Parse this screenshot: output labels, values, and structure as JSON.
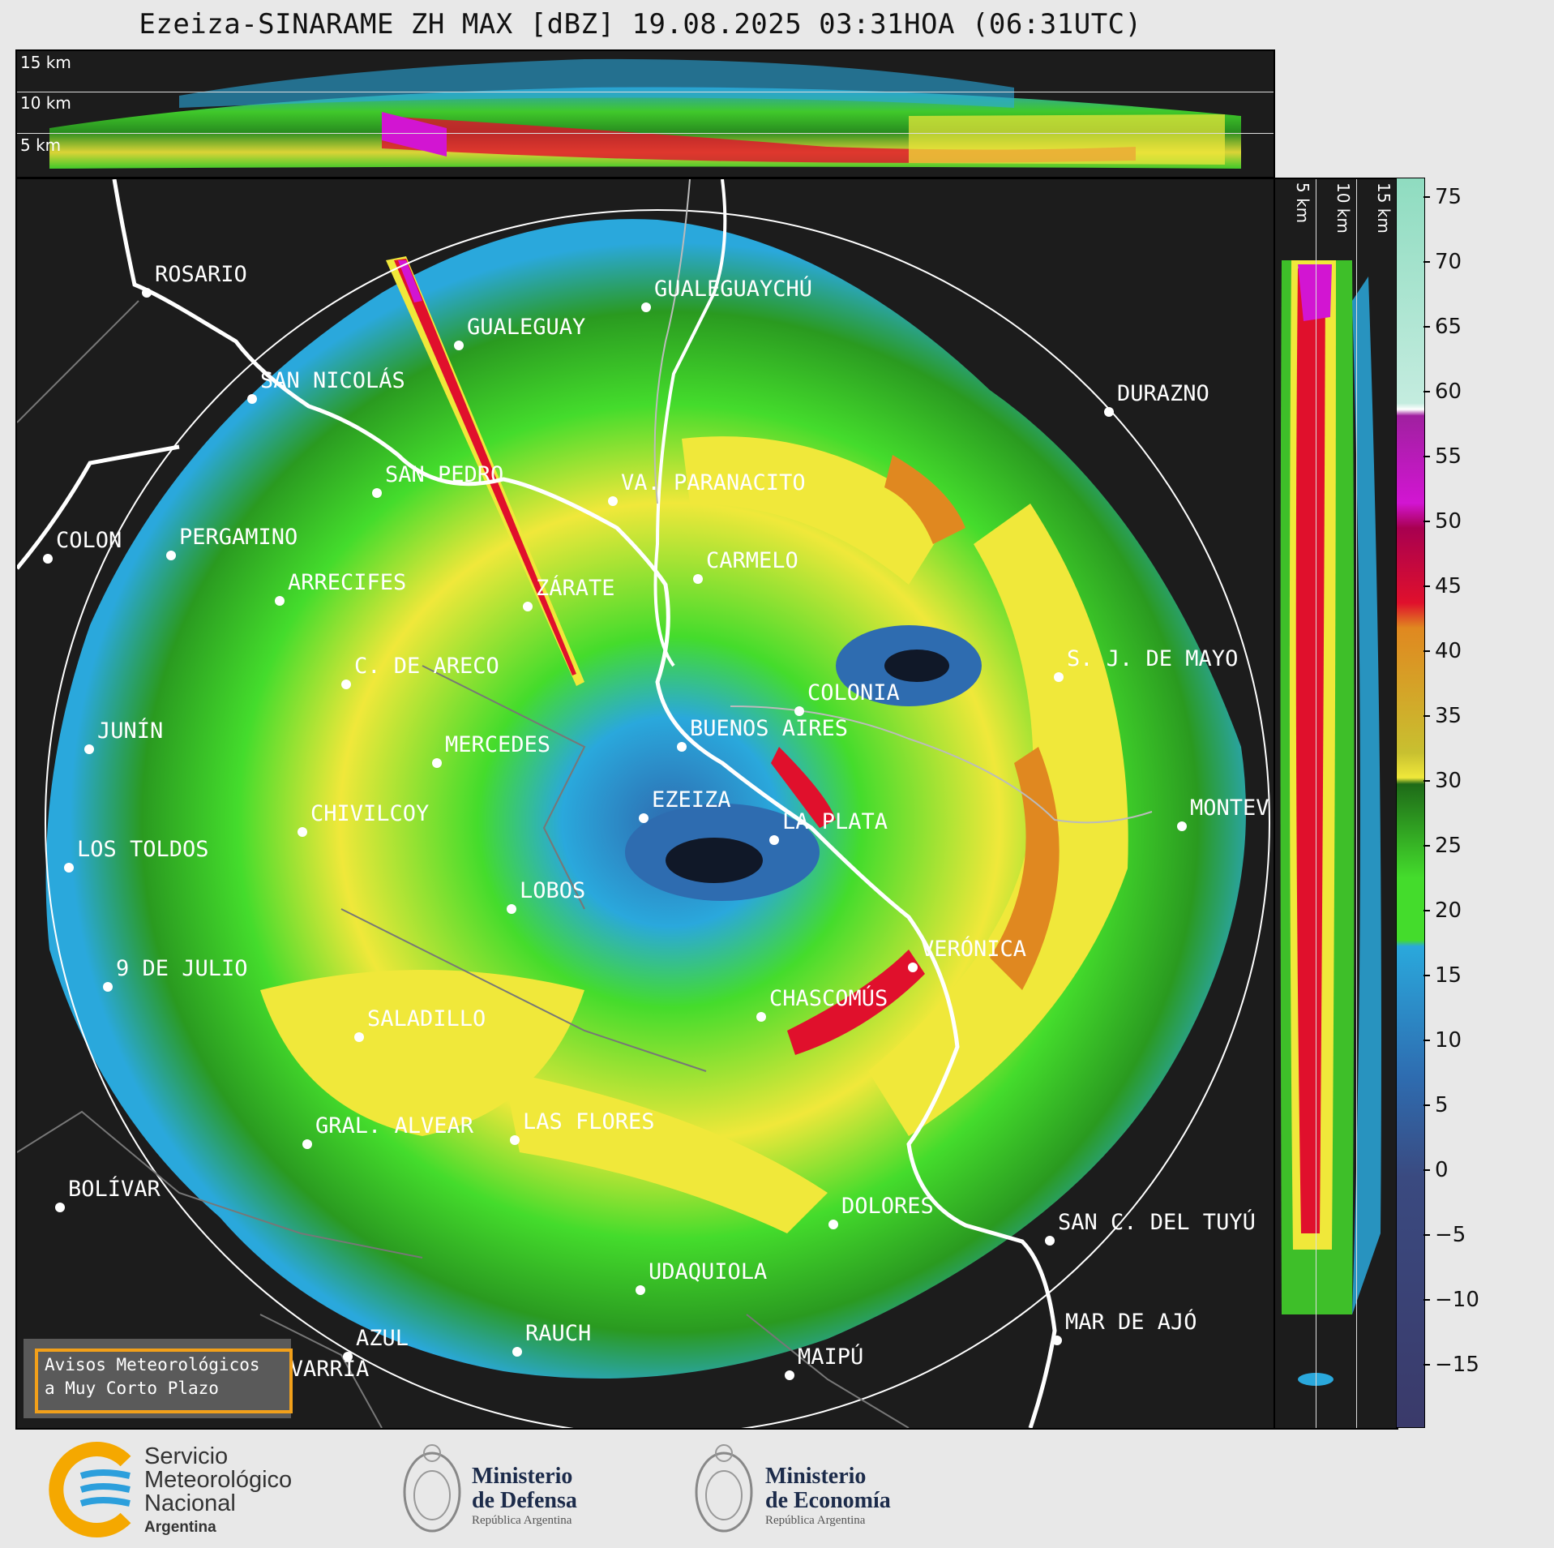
{
  "title": "Ezeiza-SINARAME ZH MAX [dBZ] 19.08.2025 03:31HOA (06:31UTC)",
  "top_panel": {
    "altitude_labels": [
      "15 km",
      "10 km",
      "5 km"
    ]
  },
  "side_panel": {
    "altitude_labels": [
      "5 km",
      "10 km",
      "15 km"
    ]
  },
  "colorbar": {
    "ticks": [
      "75",
      "70",
      "65",
      "60",
      "55",
      "50",
      "45",
      "40",
      "35",
      "30",
      "25",
      "20",
      "15",
      "10",
      "5",
      "0",
      "−5",
      "−10",
      "−15"
    ],
    "colors": {
      "v75": "#8fdcc0",
      "v65": "#c4ecdf",
      "v60": "#ffffff",
      "v55": "#d215d2",
      "v50": "#a80050",
      "v45": "#e0102c",
      "v40": "#e08820",
      "v35": "#c8c030",
      "v30": "#f0e83a",
      "v25": "#2a7a20",
      "v20": "#44dc2c",
      "v15": "#2aa8dc",
      "v5": "#2e6cb0",
      "v0": "#3a4a80",
      "vm15": "#3a3a6a"
    }
  },
  "cities": [
    {
      "name": "ROSARIO"
    },
    {
      "name": "GUALEGUAYCHÚ"
    },
    {
      "name": "GUALEGUAY"
    },
    {
      "name": "SAN NICOLÁS"
    },
    {
      "name": "DURAZNO"
    },
    {
      "name": "SAN PEDRO"
    },
    {
      "name": "VA. PARANACITO"
    },
    {
      "name": "COLON"
    },
    {
      "name": "PERGAMINO"
    },
    {
      "name": "CARMELO"
    },
    {
      "name": "ARRECIFES"
    },
    {
      "name": "ZÁRATE"
    },
    {
      "name": "S. J. DE MAYO"
    },
    {
      "name": "C. DE ARECO"
    },
    {
      "name": "COLONIA"
    },
    {
      "name": "JUNÍN"
    },
    {
      "name": "BUENOS AIRES"
    },
    {
      "name": "MERCEDES"
    },
    {
      "name": "EZEIZA"
    },
    {
      "name": "MONTEV"
    },
    {
      "name": "CHIVILCOY"
    },
    {
      "name": "LA PLATA"
    },
    {
      "name": "LOS TOLDOS"
    },
    {
      "name": "LOBOS"
    },
    {
      "name": "VERÓNICA"
    },
    {
      "name": "9 DE JULIO"
    },
    {
      "name": "CHASCOMÚS"
    },
    {
      "name": "SALADILLO"
    },
    {
      "name": "GRAL. ALVEAR"
    },
    {
      "name": "LAS FLORES"
    },
    {
      "name": "BOLÍVAR"
    },
    {
      "name": "DOLORES"
    },
    {
      "name": "SAN C. DEL TUYÚ"
    },
    {
      "name": "UDAQUIOLA"
    },
    {
      "name": "MAR DE AJÓ"
    },
    {
      "name": "AZUL"
    },
    {
      "name": "RAUCH"
    },
    {
      "name": "OLAVARRÍA"
    },
    {
      "name": "MAIPÚ"
    }
  ],
  "alerts": {
    "line1": "Avisos Meteorológicos",
    "line2": "a Muy Corto Plazo"
  },
  "logos": {
    "smn": {
      "line1": "Servicio",
      "line2": "Meteorológico",
      "line3": "Nacional",
      "line4": "Argentina"
    },
    "defensa": {
      "line1": "Ministerio",
      "line2": "de Defensa",
      "line3": "República Argentina"
    },
    "economia": {
      "line1": "Ministerio",
      "line2": "de Economía",
      "line3": "República Argentina"
    }
  }
}
